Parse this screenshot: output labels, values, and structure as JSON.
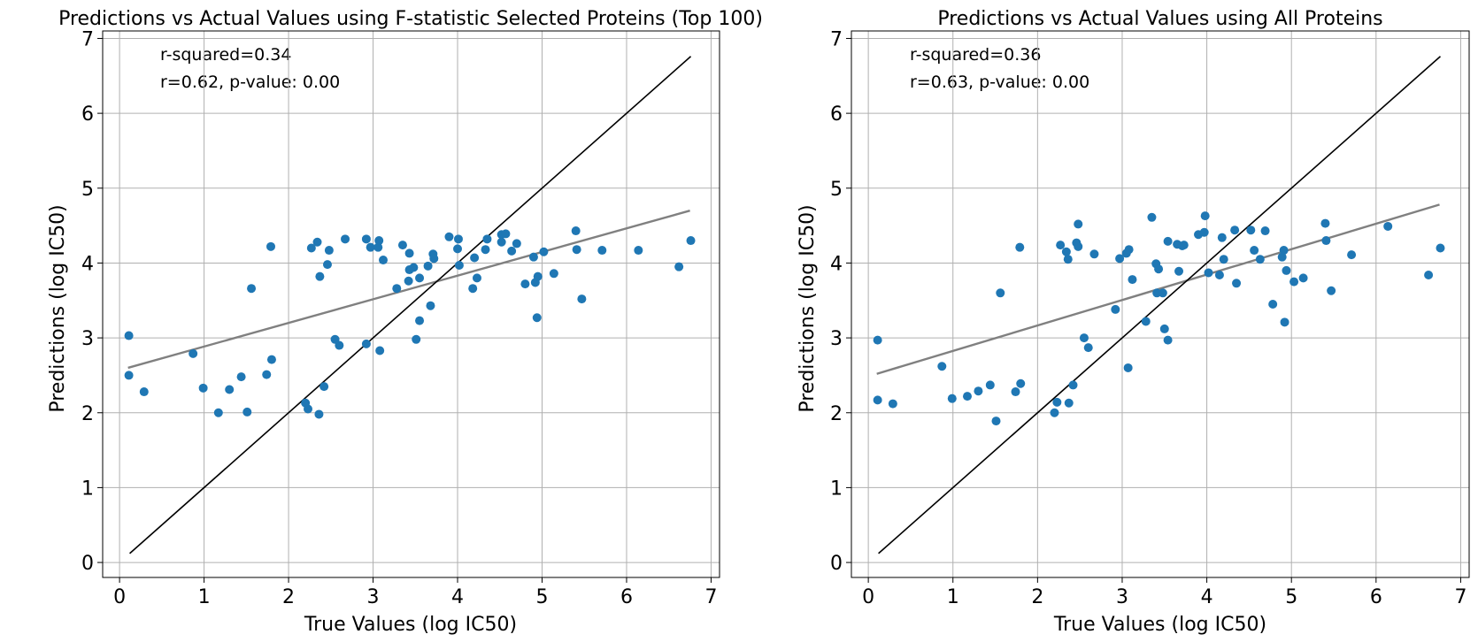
{
  "chart_data": [
    {
      "type": "scatter",
      "title": "Predictions vs Actual Values using F-statistic Selected Proteins (Top 100)",
      "xlabel": "True Values (log IC50)",
      "ylabel": "Predictions (log IC50)",
      "xlim": [
        -0.2,
        7.1
      ],
      "ylim": [
        -0.2,
        7.1
      ],
      "xticks": [
        "0",
        "1",
        "2",
        "3",
        "4",
        "5",
        "6",
        "7"
      ],
      "yticks": [
        "0",
        "1",
        "2",
        "3",
        "4",
        "5",
        "6",
        "7"
      ],
      "grid": true,
      "annotations": [
        "r-squared=0.34",
        "r=0.62, p-value: 0.00"
      ],
      "colors": {
        "points": "#1f77b4",
        "identity": "#000000",
        "fit": "#808080"
      },
      "identity_line": {
        "x": [
          0.12,
          6.76
        ],
        "y": [
          0.12,
          6.76
        ]
      },
      "fit_line": {
        "x": [
          0.1,
          6.75
        ],
        "y": [
          2.6,
          4.7
        ]
      },
      "points": [
        [
          0.11,
          3.03
        ],
        [
          0.11,
          2.5
        ],
        [
          0.29,
          2.28
        ],
        [
          0.87,
          2.79
        ],
        [
          0.99,
          2.33
        ],
        [
          1.17,
          2.0
        ],
        [
          1.3,
          2.31
        ],
        [
          1.44,
          2.48
        ],
        [
          1.51,
          2.01
        ],
        [
          1.56,
          3.66
        ],
        [
          1.74,
          2.51
        ],
        [
          1.79,
          4.22
        ],
        [
          1.8,
          2.71
        ],
        [
          2.2,
          2.13
        ],
        [
          2.23,
          2.05
        ],
        [
          2.27,
          4.2
        ],
        [
          2.34,
          4.28
        ],
        [
          2.36,
          1.98
        ],
        [
          2.37,
          3.82
        ],
        [
          2.42,
          2.35
        ],
        [
          2.46,
          3.98
        ],
        [
          2.48,
          4.17
        ],
        [
          2.55,
          2.98
        ],
        [
          2.6,
          2.9
        ],
        [
          2.67,
          4.32
        ],
        [
          2.92,
          2.92
        ],
        [
          2.92,
          4.32
        ],
        [
          2.97,
          4.21
        ],
        [
          3.06,
          4.21
        ],
        [
          3.07,
          4.3
        ],
        [
          3.08,
          2.83
        ],
        [
          3.12,
          4.04
        ],
        [
          3.28,
          3.66
        ],
        [
          3.35,
          4.24
        ],
        [
          3.42,
          3.76
        ],
        [
          3.43,
          3.91
        ],
        [
          3.43,
          4.13
        ],
        [
          3.48,
          3.94
        ],
        [
          3.51,
          2.98
        ],
        [
          3.55,
          3.23
        ],
        [
          3.55,
          3.8
        ],
        [
          3.65,
          3.96
        ],
        [
          3.68,
          3.43
        ],
        [
          3.71,
          4.12
        ],
        [
          3.72,
          4.06
        ],
        [
          3.9,
          4.35
        ],
        [
          4.0,
          4.19
        ],
        [
          4.01,
          4.32
        ],
        [
          4.02,
          3.97
        ],
        [
          4.18,
          3.66
        ],
        [
          4.2,
          4.07
        ],
        [
          4.23,
          3.8
        ],
        [
          4.33,
          4.18
        ],
        [
          4.35,
          4.32
        ],
        [
          4.52,
          4.38
        ],
        [
          4.52,
          4.28
        ],
        [
          4.57,
          4.39
        ],
        [
          4.64,
          4.16
        ],
        [
          4.7,
          4.26
        ],
        [
          4.8,
          3.72
        ],
        [
          4.9,
          4.08
        ],
        [
          4.92,
          3.74
        ],
        [
          4.95,
          3.82
        ],
        [
          4.94,
          3.27
        ],
        [
          5.02,
          4.15
        ],
        [
          5.14,
          3.86
        ],
        [
          5.4,
          4.43
        ],
        [
          5.41,
          4.18
        ],
        [
          5.47,
          3.52
        ],
        [
          5.71,
          4.17
        ],
        [
          6.14,
          4.17
        ],
        [
          6.62,
          3.95
        ],
        [
          6.76,
          4.3
        ]
      ]
    },
    {
      "type": "scatter",
      "title": "Predictions vs Actual Values using All Proteins",
      "xlabel": "True Values (log IC50)",
      "ylabel": "Predictions (log IC50)",
      "xlim": [
        -0.2,
        7.1
      ],
      "ylim": [
        -0.2,
        7.1
      ],
      "xticks": [
        "0",
        "1",
        "2",
        "3",
        "4",
        "5",
        "6",
        "7"
      ],
      "yticks": [
        "0",
        "1",
        "2",
        "3",
        "4",
        "5",
        "6",
        "7"
      ],
      "grid": true,
      "annotations": [
        "r-squared=0.36",
        "r=0.63, p-value: 0.00"
      ],
      "colors": {
        "points": "#1f77b4",
        "identity": "#000000",
        "fit": "#808080"
      },
      "identity_line": {
        "x": [
          0.12,
          6.76
        ],
        "y": [
          0.12,
          6.76
        ]
      },
      "fit_line": {
        "x": [
          0.1,
          6.75
        ],
        "y": [
          2.52,
          4.78
        ]
      },
      "points": [
        [
          0.11,
          2.97
        ],
        [
          0.11,
          2.17
        ],
        [
          0.29,
          2.12
        ],
        [
          0.87,
          2.62
        ],
        [
          0.99,
          2.19
        ],
        [
          1.17,
          2.22
        ],
        [
          1.3,
          2.29
        ],
        [
          1.44,
          2.37
        ],
        [
          1.51,
          1.89
        ],
        [
          1.56,
          3.6
        ],
        [
          1.74,
          2.28
        ],
        [
          1.79,
          4.21
        ],
        [
          1.8,
          2.39
        ],
        [
          2.2,
          2.0
        ],
        [
          2.23,
          2.14
        ],
        [
          2.27,
          4.24
        ],
        [
          2.34,
          4.15
        ],
        [
          2.36,
          4.05
        ],
        [
          2.37,
          2.13
        ],
        [
          2.42,
          2.37
        ],
        [
          2.46,
          4.27
        ],
        [
          2.48,
          4.52
        ],
        [
          2.48,
          4.22
        ],
        [
          2.55,
          3.0
        ],
        [
          2.6,
          2.87
        ],
        [
          2.67,
          4.12
        ],
        [
          2.92,
          3.38
        ],
        [
          2.97,
          4.06
        ],
        [
          3.05,
          4.13
        ],
        [
          3.07,
          2.6
        ],
        [
          3.08,
          4.18
        ],
        [
          3.12,
          3.78
        ],
        [
          3.28,
          3.22
        ],
        [
          3.35,
          4.61
        ],
        [
          3.4,
          3.99
        ],
        [
          3.41,
          3.6
        ],
        [
          3.43,
          3.92
        ],
        [
          3.48,
          3.6
        ],
        [
          3.5,
          3.12
        ],
        [
          3.54,
          2.97
        ],
        [
          3.54,
          4.29
        ],
        [
          3.65,
          4.25
        ],
        [
          3.67,
          3.89
        ],
        [
          3.71,
          4.23
        ],
        [
          3.73,
          4.24
        ],
        [
          3.9,
          4.38
        ],
        [
          3.97,
          4.41
        ],
        [
          3.98,
          4.63
        ],
        [
          4.02,
          3.87
        ],
        [
          4.15,
          3.84
        ],
        [
          4.18,
          4.34
        ],
        [
          4.2,
          4.05
        ],
        [
          4.33,
          4.44
        ],
        [
          4.35,
          3.73
        ],
        [
          4.52,
          4.44
        ],
        [
          4.56,
          4.17
        ],
        [
          4.63,
          4.05
        ],
        [
          4.69,
          4.43
        ],
        [
          4.78,
          3.45
        ],
        [
          4.89,
          4.08
        ],
        [
          4.91,
          4.17
        ],
        [
          4.92,
          3.21
        ],
        [
          4.94,
          3.9
        ],
        [
          5.03,
          3.75
        ],
        [
          5.14,
          3.8
        ],
        [
          5.4,
          4.53
        ],
        [
          5.41,
          4.3
        ],
        [
          5.47,
          3.63
        ],
        [
          5.71,
          4.11
        ],
        [
          6.14,
          4.49
        ],
        [
          6.62,
          3.84
        ],
        [
          6.76,
          4.2
        ]
      ]
    }
  ]
}
